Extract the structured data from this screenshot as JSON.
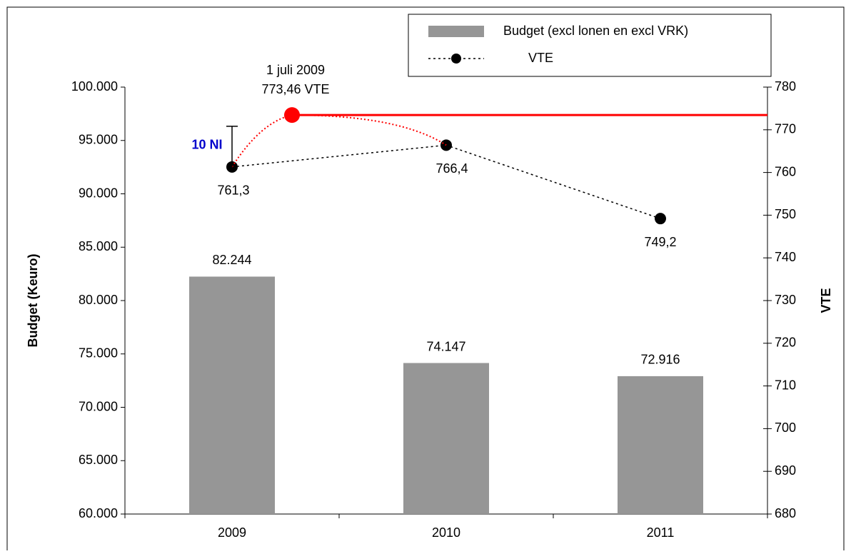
{
  "chart_data": {
    "type": "bar_line",
    "categories": [
      "2009",
      "2010",
      "2011"
    ],
    "series": [
      {
        "name": "Budget (excl lonen en excl VRK)",
        "type": "bar",
        "color": "#969696",
        "values": [
          82244,
          74147,
          72916
        ],
        "value_labels": [
          "82.244",
          "74.147",
          "72.916"
        ]
      },
      {
        "name": "VTE",
        "type": "line",
        "axis": "y2",
        "color": "#000000",
        "values": [
          761.3,
          766.4,
          749.2
        ],
        "value_labels": [
          "761,3",
          "766,4",
          "749,2"
        ]
      }
    ],
    "ylabel": "Budget (Keuro)",
    "y2label": "VTE",
    "ylim": [
      60000,
      100000
    ],
    "yticks": [
      {
        "value": 60000,
        "label": "60.000"
      },
      {
        "value": 65000,
        "label": "65.000"
      },
      {
        "value": 70000,
        "label": "70.000"
      },
      {
        "value": 75000,
        "label": "75.000"
      },
      {
        "value": 80000,
        "label": "80.000"
      },
      {
        "value": 85000,
        "label": "85.000"
      },
      {
        "value": 90000,
        "label": "90.000"
      },
      {
        "value": 95000,
        "label": "95.000"
      },
      {
        "value": 100000,
        "label": "100.000"
      }
    ],
    "y2lim": [
      680,
      780
    ],
    "y2ticks": [
      680,
      690,
      700,
      710,
      720,
      730,
      740,
      750,
      760,
      770,
      780
    ],
    "annotations": [
      {
        "text": [
          "1 juli 2009",
          "773,46 VTE"
        ],
        "value": 773.46,
        "axis": "y2",
        "color": "#ff0000"
      },
      {
        "text": "10 NI",
        "color": "#0000cc"
      }
    ],
    "legend": "top-right"
  }
}
